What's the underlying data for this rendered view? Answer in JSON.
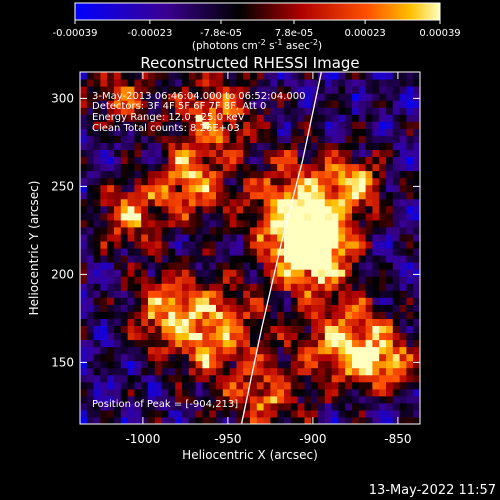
{
  "colorbar": {
    "ticks": [
      "-0.00039",
      "-0.00023",
      "-7.8e-05",
      "7.8e-05",
      "0.00023",
      "0.00039"
    ],
    "tick_values": [
      -0.00039,
      -0.00023,
      -7.8e-05,
      7.8e-05,
      0.00023,
      0.00039
    ],
    "range": [
      -0.00039,
      0.00039
    ],
    "units_main": "(photons cm",
    "units_exp1": "-2",
    "units_mid": " s",
    "units_exp2": "-1",
    "units_end": " asec",
    "units_exp3": "-2",
    "units_close": ")",
    "colormap": [
      "#0000ff",
      "#3a0090",
      "#000000",
      "#b00000",
      "#ff5000",
      "#ffc000",
      "#ffffc0"
    ]
  },
  "annotations": {
    "time": "3-May-2013 06:46:04.000 to 06:52:04.000",
    "detectors": "Detectors: 3F 4F 5F 6F 7F 8F, Att 0",
    "energy": "Energy Range: 12.0 - 25.0 keV",
    "clean": "Clean    Total counts: 8.26E+03",
    "peak": "Position of Peak = [-904,213]"
  },
  "footer": {
    "timestamp": "13-May-2022 11:57"
  },
  "chart_data": {
    "type": "heatmap",
    "title": "Reconstructed RHESSI Image",
    "xlabel": "Heliocentric X (arcsec)",
    "ylabel": "Heliocentric Y (arcsec)",
    "xlim": [
      -1037,
      -837
    ],
    "ylim": [
      115,
      315
    ],
    "xticks": [
      -1000,
      -950,
      -900,
      -850
    ],
    "yticks": [
      150,
      200,
      250,
      300
    ],
    "xtick_labels": [
      "-1000",
      "-950",
      "-900",
      "-850"
    ],
    "ytick_labels": [
      "150",
      "200",
      "250",
      "300"
    ],
    "peak": [
      -904,
      213
    ],
    "limb_points": [
      [
        -942,
        115
      ],
      [
        -930,
        170
      ],
      [
        -918,
        220
      ],
      [
        -906,
        265
      ],
      [
        -895,
        315
      ]
    ]
  }
}
